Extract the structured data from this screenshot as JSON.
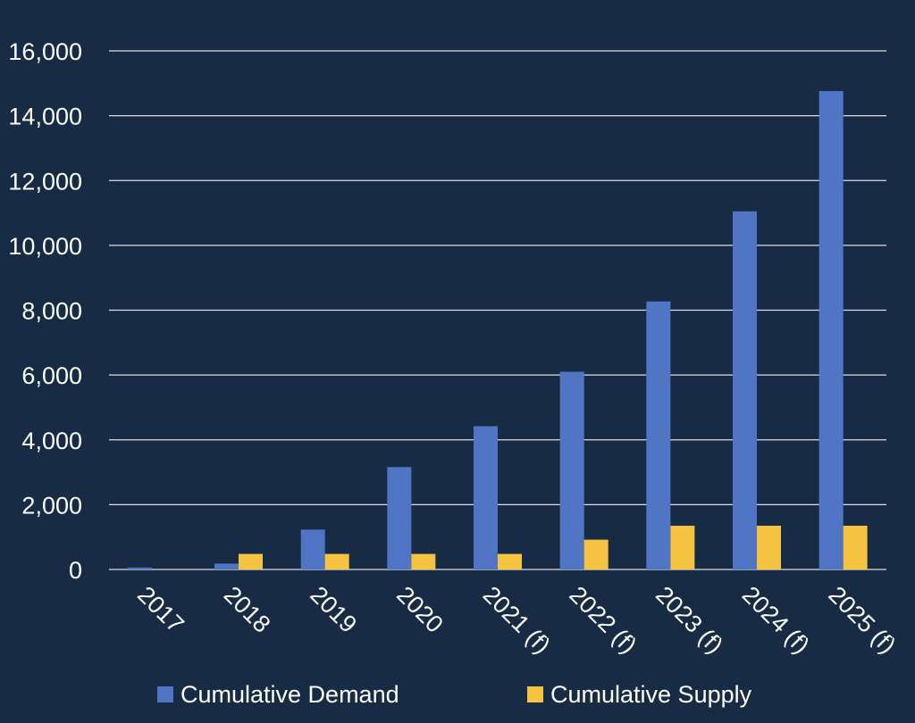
{
  "colors": {
    "background": "#182b45",
    "demand": "#4f75c4",
    "supply": "#f5c242",
    "text": "#ffffff",
    "grid": "#ffffff"
  },
  "chart_data": {
    "type": "bar",
    "title": "",
    "xlabel": "",
    "ylabel": "",
    "categories": [
      "2017",
      "2018",
      "2019",
      "2020",
      "2021 (f)",
      "2022 (f)",
      "2023 (f)",
      "2024 (f)",
      "2025 (f)"
    ],
    "series": [
      {
        "name": "Cumulative Demand",
        "values": [
          60,
          180,
          1230,
          3160,
          4420,
          6100,
          8270,
          11050,
          14760
        ]
      },
      {
        "name": "Cumulative Supply",
        "values": [
          0,
          480,
          480,
          480,
          480,
          920,
          1350,
          1350,
          1350
        ]
      }
    ],
    "ylim": [
      0,
      16000
    ],
    "yticks": [
      0,
      2000,
      4000,
      6000,
      8000,
      10000,
      12000,
      14000,
      16000
    ],
    "ytick_labels": [
      "0",
      "2,000",
      "4,000",
      "6,000",
      "8,000",
      "10,000",
      "12,000",
      "14,000",
      "16,000"
    ],
    "grid": true,
    "legend_position": "bottom"
  }
}
